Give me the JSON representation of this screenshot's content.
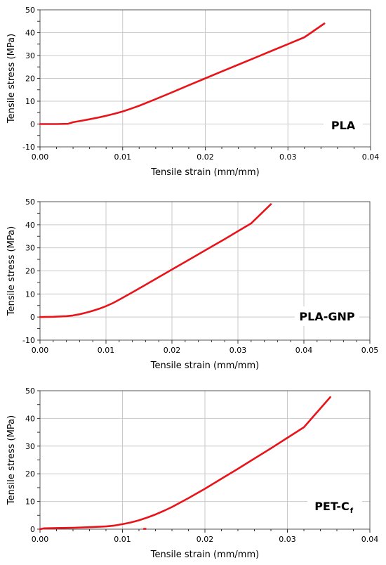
{
  "chart_data": [
    {
      "type": "line",
      "material_label": "PLA",
      "material_subscript": "",
      "xlabel": "Tensile strain (mm/mm)",
      "ylabel": "Tensile stress (MPa)",
      "xlim": [
        0,
        0.04
      ],
      "ylim": [
        -10,
        50
      ],
      "x_ticks": [
        "0.00",
        "0.01",
        "0.02",
        "0.03",
        "0.04"
      ],
      "y_ticks": [
        "-10",
        "0",
        "10",
        "20",
        "30",
        "40",
        "50"
      ],
      "x_tick_values": [
        0,
        0.01,
        0.02,
        0.03,
        0.04
      ],
      "y_tick_values": [
        -10,
        0,
        10,
        20,
        30,
        40,
        50
      ],
      "grid": true,
      "color": "#e8141a",
      "series": [
        {
          "x": [
            0,
            0.001,
            0.002,
            0.0034,
            0.004,
            0.005,
            0.006,
            0.007,
            0.008,
            0.009,
            0.01,
            0.011,
            0.012,
            0.014,
            0.016,
            0.018,
            0.02,
            0.022,
            0.024,
            0.026,
            0.028,
            0.03,
            0.032,
            0.0344
          ],
          "y": [
            0,
            0,
            0,
            0.1,
            0.8,
            1.4,
            2.1,
            2.8,
            3.6,
            4.5,
            5.5,
            6.7,
            8.0,
            10.9,
            13.9,
            17.0,
            20.0,
            23.0,
            26.0,
            29.0,
            32.0,
            35.0,
            38.0,
            44.0
          ]
        }
      ]
    },
    {
      "type": "line",
      "material_label": "PLA-GNP",
      "material_subscript": "",
      "xlabel": "Tensile strain (mm/mm)",
      "ylabel": "Tensile stress (MPa)",
      "xlim": [
        0,
        0.05
      ],
      "ylim": [
        -10,
        50
      ],
      "x_ticks": [
        "0.00",
        "0.01",
        "0.02",
        "0.03",
        "0.04",
        "0.05"
      ],
      "y_ticks": [
        "-10",
        "0",
        "10",
        "20",
        "30",
        "40",
        "50"
      ],
      "x_tick_values": [
        0,
        0.01,
        0.02,
        0.03,
        0.04,
        0.05
      ],
      "y_tick_values": [
        -10,
        0,
        10,
        20,
        30,
        40,
        50
      ],
      "grid": true,
      "color": "#e8141a",
      "series": [
        {
          "x": [
            0,
            0.002,
            0.004,
            0.005,
            0.006,
            0.007,
            0.008,
            0.009,
            0.01,
            0.011,
            0.012,
            0.014,
            0.016,
            0.018,
            0.02,
            0.022,
            0.024,
            0.026,
            0.028,
            0.03,
            0.032,
            0.035
          ],
          "y": [
            0,
            0.1,
            0.4,
            0.7,
            1.2,
            1.9,
            2.7,
            3.6,
            4.7,
            6.0,
            7.5,
            10.7,
            14.0,
            17.3,
            20.6,
            23.9,
            27.2,
            30.5,
            33.8,
            37.2,
            40.6,
            48.9
          ]
        }
      ]
    },
    {
      "type": "line",
      "material_label": "PET-C",
      "material_subscript": "f",
      "xlabel": "Tensile strain (mm/mm)",
      "ylabel": "Tensile stress (MPa)",
      "xlim": [
        0,
        0.04
      ],
      "ylim": [
        0,
        50
      ],
      "x_ticks": [
        "0.00",
        "0.01",
        "0.02",
        "0.03",
        "0.04"
      ],
      "y_ticks": [
        "0",
        "10",
        "20",
        "30",
        "40",
        "50"
      ],
      "x_tick_values": [
        0,
        0.01,
        0.02,
        0.03,
        0.04
      ],
      "y_tick_values": [
        0,
        10,
        20,
        30,
        40,
        50
      ],
      "grid": true,
      "color": "#e8141a",
      "series": [
        {
          "x": [
            0,
            0.0005,
            0.002,
            0.004,
            0.006,
            0.008,
            0.009,
            0.01,
            0.011,
            0.012,
            0.013,
            0.014,
            0.015,
            0.016,
            0.018,
            0.02,
            0.022,
            0.024,
            0.026,
            0.028,
            0.03,
            0.032,
            0.0352
          ],
          "y": [
            0,
            0.3,
            0.4,
            0.5,
            0.7,
            1.0,
            1.3,
            1.8,
            2.4,
            3.2,
            4.2,
            5.3,
            6.6,
            8.0,
            11.2,
            14.6,
            18.2,
            21.8,
            25.5,
            29.2,
            33.0,
            36.8,
            47.7
          ]
        },
        {
          "x": [
            0.0126,
            0.0128
          ],
          "y": [
            0.1,
            0.1
          ]
        }
      ]
    }
  ]
}
